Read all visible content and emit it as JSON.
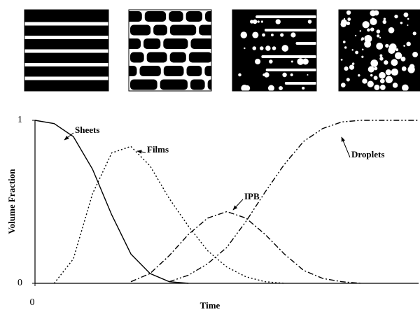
{
  "chart_data": {
    "type": "line",
    "x_label": "Time",
    "y_label": "Volume Fraction",
    "x": [
      0,
      0.05,
      0.1,
      0.15,
      0.2,
      0.25,
      0.3,
      0.35,
      0.4,
      0.45,
      0.5,
      0.55,
      0.6,
      0.65,
      0.7,
      0.75,
      0.8,
      0.85,
      0.9,
      0.95,
      1
    ],
    "xlim": [
      0,
      1
    ],
    "xticks": [
      0
    ],
    "ylim": [
      0,
      1
    ],
    "yticks": [
      0,
      1
    ],
    "series": [
      {
        "name": "Sheets",
        "color": "#000000",
        "dash": "solid",
        "values": [
          1,
          0.98,
          0.9,
          0.7,
          0.42,
          0.18,
          0.06,
          0.01,
          0,
          null,
          null,
          null,
          null,
          null,
          null,
          null,
          null,
          null,
          null,
          null,
          null
        ]
      },
      {
        "name": "Films",
        "color": "#000000",
        "dash": "dotted",
        "values": [
          null,
          0,
          0.15,
          0.55,
          0.8,
          0.84,
          0.72,
          0.52,
          0.35,
          0.2,
          0.1,
          0.04,
          0.01,
          0,
          null,
          null,
          null,
          null,
          null,
          null,
          null
        ]
      },
      {
        "name": "IPB",
        "color": "#000000",
        "dash": "dash-dot",
        "values": [
          null,
          null,
          null,
          null,
          null,
          0.01,
          0.06,
          0.17,
          0.3,
          0.4,
          0.44,
          0.4,
          0.3,
          0.18,
          0.08,
          0.03,
          0.01,
          0,
          null,
          null,
          null
        ]
      },
      {
        "name": "Droplets",
        "color": "#000000",
        "dash": "dash-dot-dot",
        "values": [
          null,
          null,
          null,
          null,
          null,
          null,
          null,
          0.01,
          0.05,
          0.12,
          0.22,
          0.38,
          0.56,
          0.73,
          0.87,
          0.95,
          0.99,
          1,
          1,
          1,
          1
        ]
      }
    ]
  }
}
